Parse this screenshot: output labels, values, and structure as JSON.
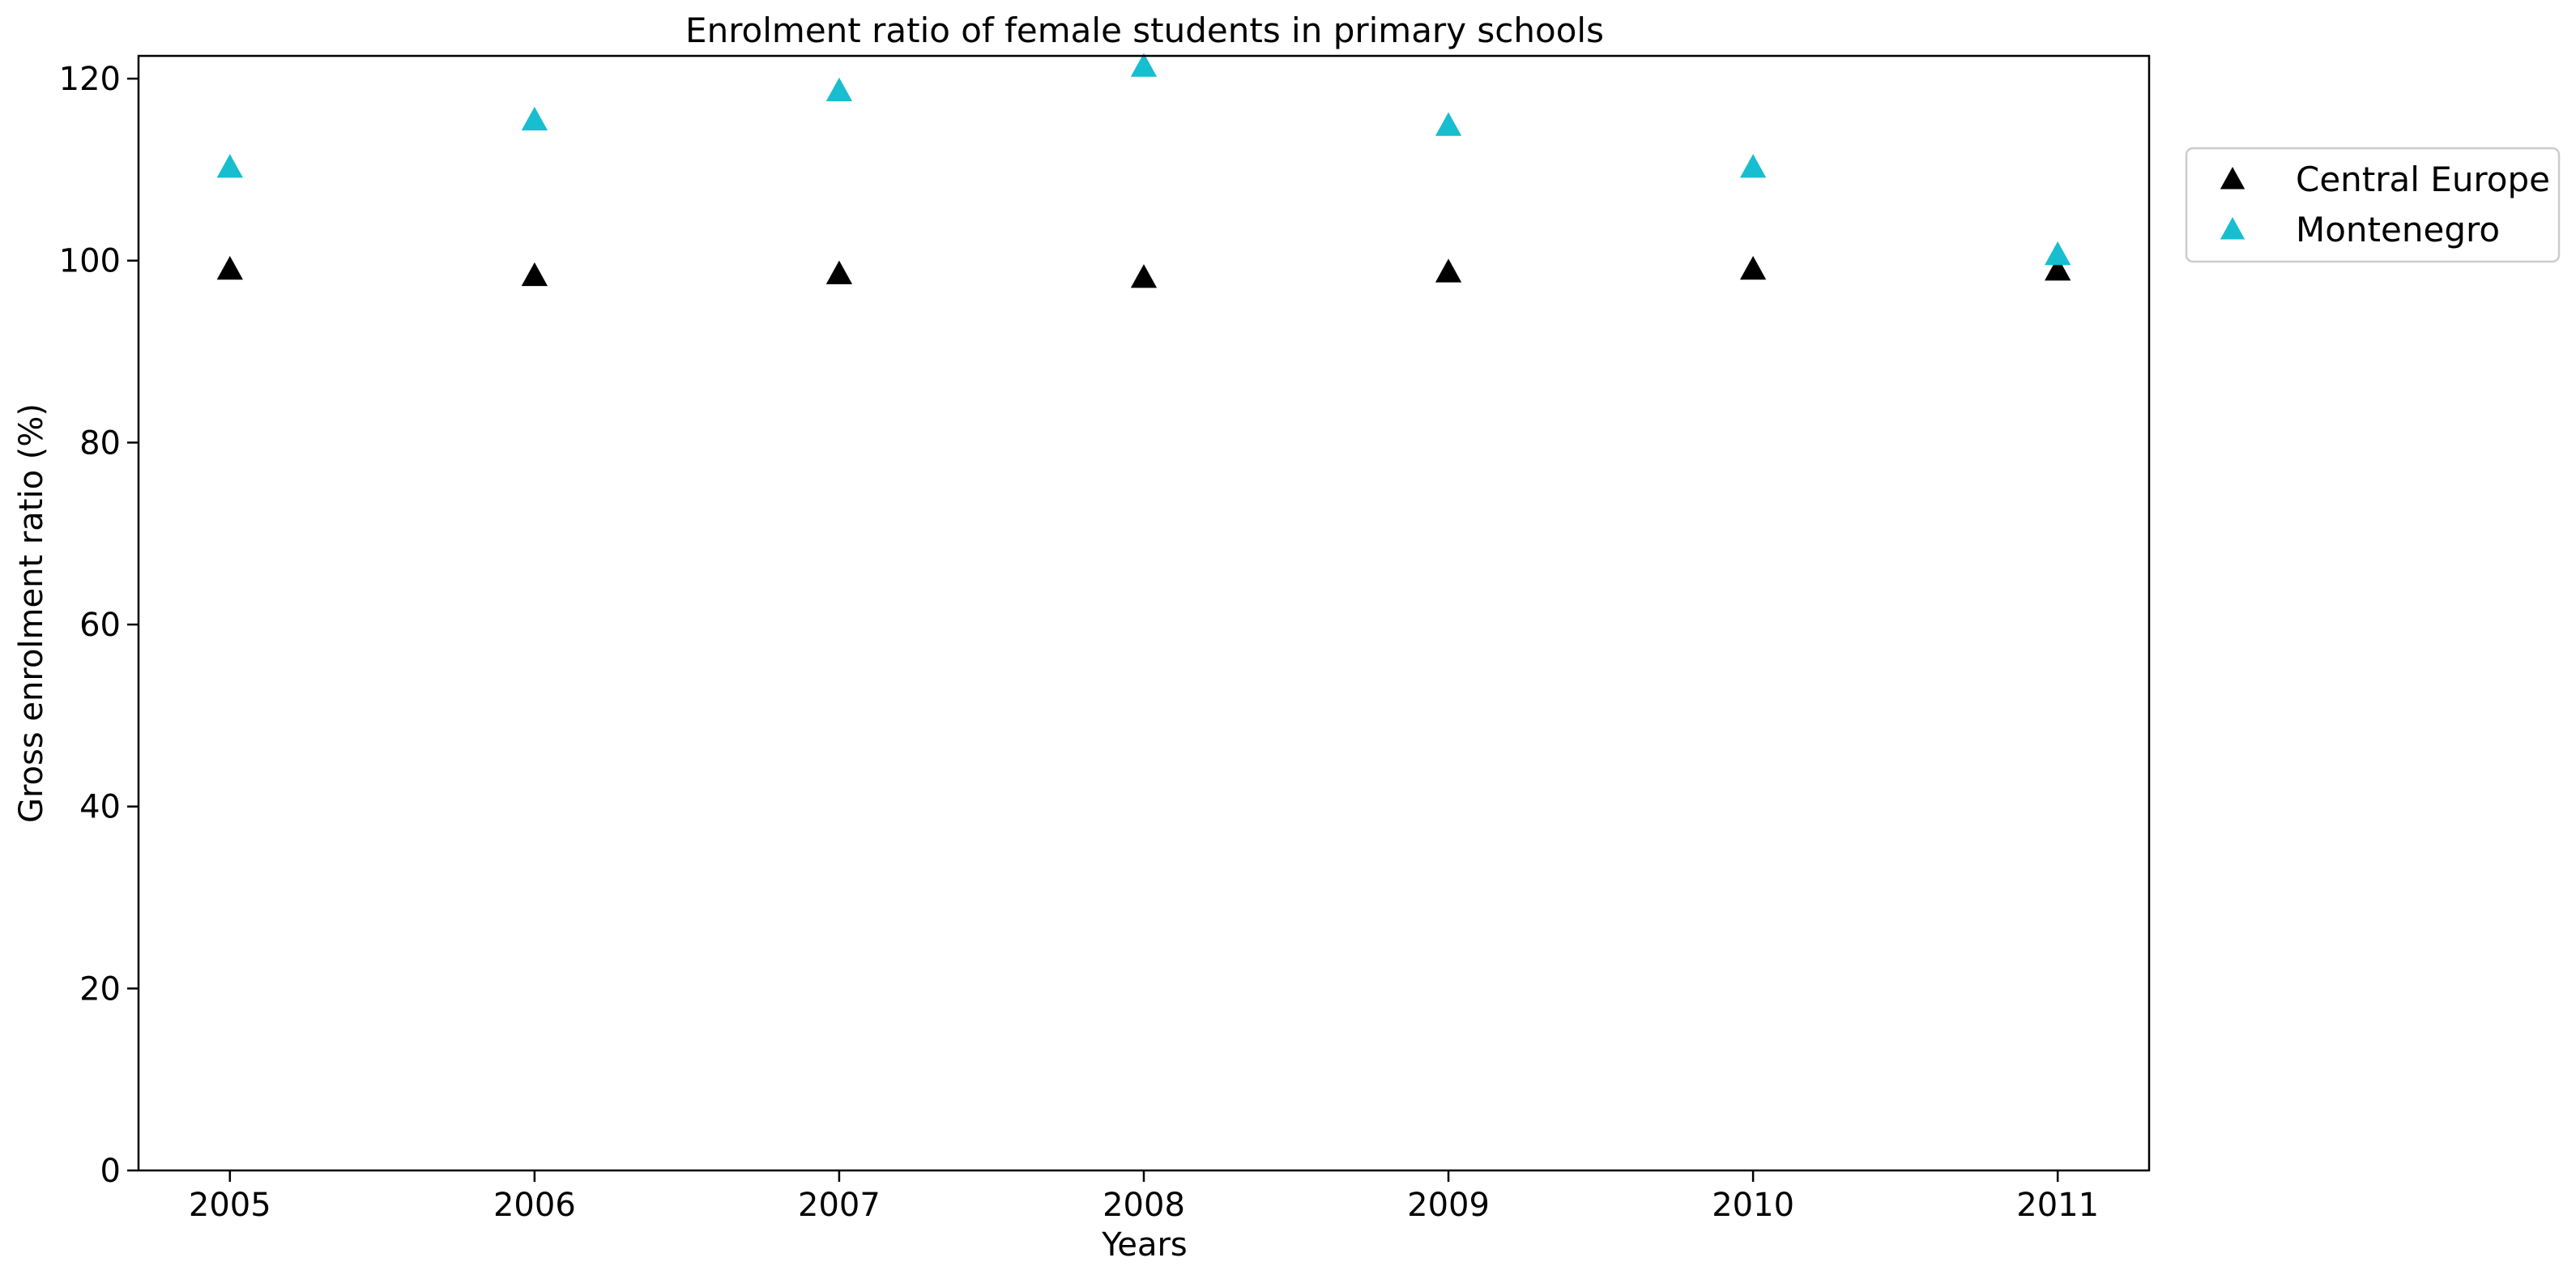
{
  "chart_data": {
    "type": "scatter",
    "title": "Enrolment ratio of female students in primary schools",
    "xlabel": "Years",
    "ylabel": "Gross enrolment ratio (%)",
    "x": [
      2005,
      2006,
      2007,
      2008,
      2009,
      2010,
      2011
    ],
    "xlim": [
      2004.7,
      2011.3
    ],
    "ylim": [
      0,
      122.5
    ],
    "x_ticks": [
      "2005",
      "2006",
      "2007",
      "2008",
      "2009",
      "2010",
      "2011"
    ],
    "y_ticks": [
      "0",
      "20",
      "40",
      "60",
      "80",
      "100",
      "120"
    ],
    "grid": false,
    "legend_position": "outside-right-top",
    "marker": "triangle-up",
    "series": [
      {
        "name": "Central Europe",
        "color": "#000000",
        "values": [
          99.0,
          98.3,
          98.5,
          98.1,
          98.7,
          99.0,
          98.9
        ]
      },
      {
        "name": "Montenegro",
        "color": "#17becf",
        "values": [
          110.2,
          115.4,
          118.6,
          121.3,
          114.8,
          110.2,
          100.6
        ]
      }
    ]
  }
}
